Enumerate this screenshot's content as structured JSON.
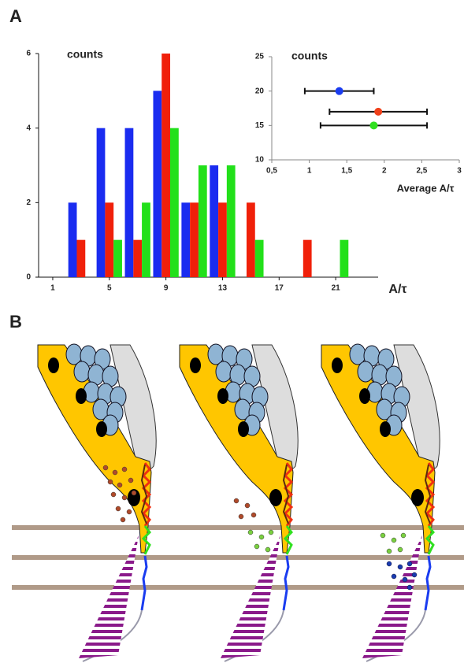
{
  "panel_labels": [
    "A",
    "B"
  ],
  "chart_data": [
    {
      "type": "bar",
      "ylabel": "counts",
      "xlabel": "A/τ",
      "x": [
        3,
        5,
        7,
        9,
        11,
        13,
        15,
        17,
        19,
        21
      ],
      "series": [
        {
          "color": "#1a2cf0",
          "values": [
            2,
            4,
            4,
            5,
            2,
            3,
            0,
            0,
            0,
            0
          ]
        },
        {
          "color": "#f0200a",
          "values": [
            1,
            2,
            1,
            6,
            2,
            2,
            2,
            0,
            1,
            0
          ]
        },
        {
          "color": "#22e01a",
          "values": [
            0,
            1,
            2,
            4,
            3,
            3,
            1,
            0,
            0,
            1
          ]
        }
      ],
      "xlim": [
        0,
        24
      ],
      "xticks": [
        1,
        5,
        9,
        13,
        17,
        21
      ],
      "ylim": [
        0,
        6
      ],
      "yticks": [
        0,
        2,
        4,
        6
      ]
    },
    {
      "type": "scatter",
      "ylabel": "counts",
      "xlabel": "Average A/τ",
      "series": [
        {
          "color": "#1a3cf0",
          "x": [
            1.4
          ],
          "values": [
            20
          ],
          "xerr": [
            0.46
          ]
        },
        {
          "color": "#f0401a",
          "x": [
            1.92
          ],
          "values": [
            17
          ],
          "xerr": [
            0.65
          ]
        },
        {
          "color": "#30e020",
          "x": [
            1.86
          ],
          "values": [
            15
          ],
          "xerr": [
            0.71
          ]
        }
      ],
      "xlim": [
        0.5,
        3
      ],
      "xticks": [
        {
          "value": 0.5,
          "label": "0,5"
        },
        1,
        {
          "value": 1.5,
          "label": "1,5"
        },
        2,
        {
          "value": 2.5,
          "label": "2,5"
        },
        3
      ],
      "ylim": [
        10,
        25
      ],
      "yticks": [
        10,
        15,
        20,
        25
      ]
    }
  ]
}
